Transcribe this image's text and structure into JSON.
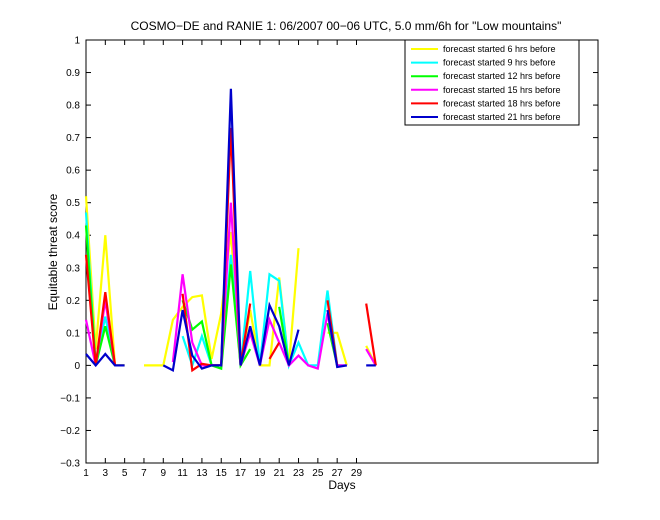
{
  "chart_data": {
    "type": "line",
    "title": "COSMO−DE and RANIE 1: 06/2007 00−06 UTC, 5.0 mm/6h for \"Low mountains\"",
    "xlabel": "Days",
    "ylabel": "Equitable threat score",
    "xlim": [
      1,
      54
    ],
    "ylim": [
      -0.3,
      1
    ],
    "xticks": [
      1,
      3,
      5,
      7,
      9,
      11,
      13,
      15,
      17,
      19,
      21,
      23,
      25,
      27,
      29
    ],
    "yticks": [
      -0.3,
      -0.2,
      -0.1,
      0,
      0.1,
      0.2,
      0.3,
      0.4,
      0.5,
      0.6,
      0.7,
      0.8,
      0.9,
      1
    ],
    "ytick_labels": [
      "−0.3",
      "−0.2",
      "−0.1",
      "0",
      "0.1",
      "0.2",
      "0.3",
      "0.4",
      "0.5",
      "0.6",
      "0.7",
      "0.8",
      "0.9",
      "1"
    ],
    "grid": false,
    "legend_position": "top-right",
    "x": [
      1,
      2,
      3,
      4,
      5,
      6,
      7,
      8,
      9,
      10,
      11,
      12,
      13,
      14,
      15,
      16,
      17,
      18,
      19,
      20,
      21,
      22,
      23,
      24,
      25,
      26,
      27,
      28,
      29,
      30,
      31
    ],
    "series": [
      {
        "name": "forecast started 6 hrs before",
        "color": "#ffff00",
        "values": [
          0.52,
          0.05,
          0.4,
          0.0,
          0.0,
          null,
          0.0,
          0.0,
          0.0,
          0.14,
          0.18,
          0.21,
          0.215,
          0.02,
          0.16,
          0.41,
          0.0,
          0.17,
          0.0,
          0.0,
          0.27,
          0.0,
          0.36,
          null,
          null,
          0.1,
          0.1,
          0.0,
          null,
          0.06,
          0.0
        ]
      },
      {
        "name": "forecast started 9 hrs before",
        "color": "#00ffff",
        "values": [
          0.47,
          0.0,
          0.15,
          0.0,
          null,
          null,
          null,
          null,
          null,
          null,
          0.09,
          0.0,
          0.09,
          0.0,
          0.0,
          0.34,
          0.0,
          0.29,
          0.0,
          0.28,
          0.26,
          0.0,
          0.07,
          0.0,
          0.0,
          0.23,
          0.0,
          0.0,
          null,
          null,
          null
        ]
      },
      {
        "name": "forecast started 12 hrs before",
        "color": "#00ff00",
        "values": [
          0.43,
          0.0,
          0.12,
          0.0,
          null,
          null,
          null,
          null,
          null,
          null,
          0.2,
          0.11,
          0.135,
          0.0,
          -0.01,
          0.31,
          0.0,
          0.05,
          null,
          null,
          0.18,
          0.0,
          null,
          null,
          null,
          0.13,
          0.0,
          null,
          null,
          null,
          null
        ]
      },
      {
        "name": "forecast started 15 hrs before",
        "color": "#ff00ff",
        "values": [
          0.14,
          0.0,
          0.2,
          0.0,
          null,
          null,
          null,
          null,
          null,
          0.01,
          0.28,
          0.07,
          0.0,
          0.0,
          0.0,
          0.5,
          0.0,
          0.1,
          0.0,
          0.14,
          0.07,
          0.0,
          0.03,
          0.0,
          -0.01,
          0.16,
          0.0,
          0.0,
          null,
          0.05,
          0.0
        ]
      },
      {
        "name": "forecast started 18 hrs before",
        "color": "#ff0000",
        "values": [
          0.34,
          0.0,
          0.225,
          0.0,
          null,
          null,
          null,
          null,
          null,
          null,
          0.22,
          -0.015,
          0.005,
          0.0,
          0.0,
          0.73,
          0.0,
          0.19,
          null,
          0.02,
          0.07,
          null,
          null,
          null,
          null,
          0.2,
          0.0,
          null,
          null,
          0.19,
          0.0
        ]
      },
      {
        "name": "forecast started 21 hrs before",
        "color": "#0000cc",
        "values": [
          0.035,
          0.0,
          0.035,
          0.0,
          0.0,
          null,
          0.0,
          null,
          0.0,
          -0.015,
          0.17,
          0.03,
          -0.01,
          0.0,
          0.0,
          0.85,
          0.0,
          0.12,
          0.0,
          0.185,
          0.12,
          0.0,
          0.11,
          null,
          null,
          0.17,
          -0.005,
          0.0,
          null,
          0.0,
          0.0
        ]
      }
    ]
  }
}
